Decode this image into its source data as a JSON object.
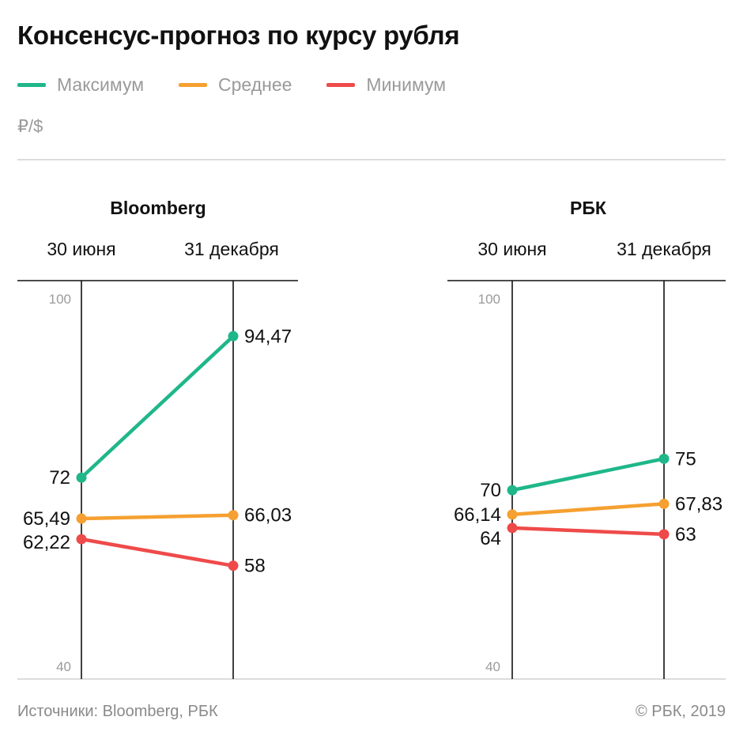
{
  "title": "Консенсус-прогноз по курсу рубля",
  "unit": "₽/$",
  "legend": [
    {
      "label": "Максимум",
      "color": "#1fb78a"
    },
    {
      "label": "Среднее",
      "color": "#f5a031"
    },
    {
      "label": "Минимум",
      "color": "#ef4a4a"
    }
  ],
  "source": "Источники: Bloomberg, РБК",
  "copyright": "© РБК, 2019",
  "chart_data": {
    "type": "line",
    "ylim": [
      40,
      100
    ],
    "yticks": [
      "100",
      "40"
    ],
    "x": [
      "30 июня",
      "31 декабря"
    ],
    "panels": [
      {
        "name": "Bloomberg",
        "series": [
          {
            "name": "Максимум",
            "values": [
              72,
              94.47
            ],
            "labels": [
              "72",
              "94,47"
            ]
          },
          {
            "name": "Среднее",
            "values": [
              65.49,
              66.03
            ],
            "labels": [
              "65,49",
              "66,03"
            ]
          },
          {
            "name": "Минимум",
            "values": [
              62.22,
              58
            ],
            "labels": [
              "62,22",
              "58"
            ]
          }
        ]
      },
      {
        "name": "РБК",
        "series": [
          {
            "name": "Максимум",
            "values": [
              70,
              75
            ],
            "labels": [
              "70",
              "75"
            ]
          },
          {
            "name": "Среднее",
            "values": [
              66.14,
              67.83
            ],
            "labels": [
              "66,14",
              "67,83"
            ]
          },
          {
            "name": "Минимум",
            "values": [
              64,
              63
            ],
            "labels": [
              "64",
              "63"
            ]
          }
        ]
      }
    ]
  }
}
